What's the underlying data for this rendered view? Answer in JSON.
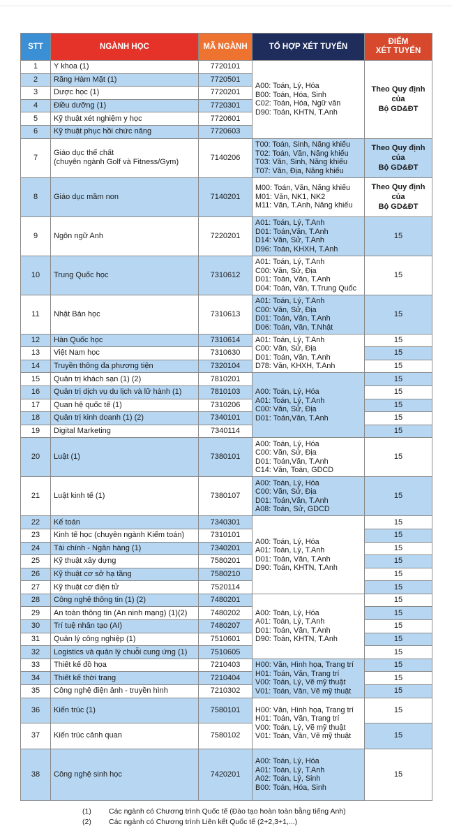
{
  "header": {
    "stt": "STT",
    "name": "NGÀNH HỌC",
    "code": "MÃ NGÀNH",
    "combo": "TỔ HỢP XÉT TUYỂN",
    "score": [
      "ĐIỂM",
      "XÉT TUYỂN"
    ],
    "colors": {
      "stt": "#3b8fd5",
      "name": "#e5332a",
      "code": "#ee7331",
      "combo": "#1e2d5c",
      "score": "#d6492c"
    }
  },
  "rows": [
    {
      "stt": "1",
      "name": [
        "Y khoa (1)"
      ],
      "code": "7720101"
    },
    {
      "stt": "2",
      "name": [
        "Răng Hàm Mặt (1)"
      ],
      "code": "7720501"
    },
    {
      "stt": "3",
      "name": [
        "Dược học (1)"
      ],
      "code": "7720201"
    },
    {
      "stt": "4",
      "name": [
        "Điều dưỡng (1)"
      ],
      "code": "7720301"
    },
    {
      "stt": "5",
      "name": [
        "Kỹ thuật xét nghiệm y học"
      ],
      "code": "7720601"
    },
    {
      "stt": "6",
      "name": [
        "Kỹ thuật phục hồi chức năng"
      ],
      "code": "7720603"
    },
    {
      "stt": "7",
      "name": [
        "Giáo dục thể chất",
        "(chuyên ngành Golf và Fitness/Gym)"
      ],
      "code": "7140206"
    },
    {
      "stt": "8",
      "name": [
        "Giáo dục mầm non"
      ],
      "code": "7140201"
    },
    {
      "stt": "9",
      "name": [
        "Ngôn ngữ Anh"
      ],
      "code": "7220201",
      "score": "15"
    },
    {
      "stt": "10",
      "name": [
        "Trung Quốc học"
      ],
      "code": "7310612",
      "score": "15"
    },
    {
      "stt": "11",
      "name": [
        "Nhật Bản học"
      ],
      "code": "7310613",
      "score": "15"
    },
    {
      "stt": "12",
      "name": [
        "Hàn Quốc học"
      ],
      "code": "7310614",
      "score": "15"
    },
    {
      "stt": "13",
      "name": [
        "Việt Nam học"
      ],
      "code": "7310630",
      "score": "15"
    },
    {
      "stt": "14",
      "name": [
        "Truyền thông đa phương tiện"
      ],
      "code": "7320104",
      "score": "15"
    },
    {
      "stt": "15",
      "name": [
        "Quản trị khách sạn (1) (2)"
      ],
      "code": "7810201",
      "score": "15"
    },
    {
      "stt": "16",
      "name": [
        "Quản trị dịch vụ du lịch và lữ hành (1)"
      ],
      "code": "7810103",
      "score": "15"
    },
    {
      "stt": "17",
      "name": [
        "Quan hệ quốc tế (1)"
      ],
      "code": "7310206",
      "score": "15"
    },
    {
      "stt": "18",
      "name": [
        "Quản trị kinh doanh (1) (2)"
      ],
      "code": "7340101",
      "score": "15"
    },
    {
      "stt": "19",
      "name": [
        "Digital Marketing"
      ],
      "code": "7340114",
      "score": "15"
    },
    {
      "stt": "20",
      "name": [
        "Luật (1)"
      ],
      "code": "7380101",
      "score": "15"
    },
    {
      "stt": "21",
      "name": [
        "Luật kinh tế (1)"
      ],
      "code": "7380107",
      "score": "15"
    },
    {
      "stt": "22",
      "name": [
        "Kế toán"
      ],
      "code": "7340301",
      "score": "15"
    },
    {
      "stt": "23",
      "name": [
        "Kinh tế học (chuyên ngành Kiểm toán)"
      ],
      "code": "7310101",
      "score": "15"
    },
    {
      "stt": "24",
      "name": [
        "Tài chính - Ngân hàng (1)"
      ],
      "code": "7340201",
      "score": "15"
    },
    {
      "stt": "25",
      "name": [
        "Kỹ thuật xây dựng"
      ],
      "code": "7580201",
      "score": "15"
    },
    {
      "stt": "26",
      "name": [
        "Kỹ thuật cơ sở hạ tầng"
      ],
      "code": "7580210",
      "score": "15"
    },
    {
      "stt": "27",
      "name": [
        "Kỹ thuật cơ điện tử"
      ],
      "code": "7520114",
      "score": "15"
    },
    {
      "stt": "28",
      "name": [
        "Công nghệ thông tin (1) (2)"
      ],
      "code": "7480201",
      "score": "15"
    },
    {
      "stt": "29",
      "name": [
        "An toàn thông tin (An ninh mạng) (1)(2)"
      ],
      "code": "7480202",
      "score": "15"
    },
    {
      "stt": "30",
      "name": [
        "Trí tuệ nhân tạo (AI)"
      ],
      "code": "7480207",
      "score": "15"
    },
    {
      "stt": "31",
      "name": [
        "Quản lý công nghiệp (1)"
      ],
      "code": "7510601",
      "score": "15"
    },
    {
      "stt": "32",
      "name": [
        "Logistics và quản lý chuỗi cung ứng (1)"
      ],
      "code": "7510605",
      "score": "15"
    },
    {
      "stt": "33",
      "name": [
        "Thiết kế đồ họa"
      ],
      "code": "7210403",
      "score": "15"
    },
    {
      "stt": "34",
      "name": [
        "Thiết kế thời trang"
      ],
      "code": "7210404",
      "score": "15"
    },
    {
      "stt": "35",
      "name": [
        "Công nghệ điện ảnh - truyền hình"
      ],
      "code": "7210302",
      "score": "15"
    },
    {
      "stt": "36",
      "name": [
        "Kiến trúc (1)"
      ],
      "code": "7580101",
      "score": "15"
    },
    {
      "stt": "37",
      "name": [
        "Kiến trúc cảnh quan"
      ],
      "code": "7580102",
      "score": "15"
    },
    {
      "stt": "38",
      "name": [
        "Công nghệ sinh học"
      ],
      "code": "7420201",
      "score": "15"
    }
  ],
  "score_groups": [
    {
      "from": 1,
      "to": 6,
      "lines": [
        "Theo Quy định",
        "của",
        "Bộ GD&ĐT"
      ]
    },
    {
      "from": 7,
      "to": 7,
      "lines": [
        "Theo Quy định",
        "của",
        "Bộ GD&ĐT"
      ]
    },
    {
      "from": 8,
      "to": 8,
      "lines": [
        "Theo Quy định",
        "của",
        "Bộ GD&ĐT"
      ]
    }
  ],
  "combo_groups": [
    {
      "from": 1,
      "to": 6,
      "lines": [
        "A00: Toán, Lý, Hóa",
        "B00: Toán, Hóa, Sinh",
        "C02: Toán, Hóa, Ngữ văn",
        "D90: Toán, KHTN, T.Anh"
      ]
    },
    {
      "from": 7,
      "to": 7,
      "lines": [
        "T00: Toán, Sinh, Năng khiếu",
        "T02: Toán, Văn, Năng khiếu",
        "T03: Văn, Sinh, Năng khiếu",
        "T07: Văn, Địa, Năng khiếu"
      ]
    },
    {
      "from": 8,
      "to": 8,
      "lines": [
        "M00: Toán, Văn, Năng khiếu",
        "M01: Văn, NK1, NK2",
        "M11: Văn, T.Anh, Năng khiếu"
      ]
    },
    {
      "from": 9,
      "to": 9,
      "lines": [
        "A01: Toán, Lý, T.Anh",
        "D01: Toán,Văn, T.Anh",
        "D14: Văn, Sử,  T.Anh",
        "D96: Toán, KHXH, T.Anh"
      ]
    },
    {
      "from": 10,
      "to": 10,
      "lines": [
        "A01: Toán, Lý, T.Anh",
        "C00: Văn, Sử, Địa",
        "D01: Toán, Văn, T.Anh",
        "D04: Toán, Văn, T.Trung Quốc"
      ]
    },
    {
      "from": 11,
      "to": 11,
      "lines": [
        "A01: Toán, Lý, T.Anh",
        "C00: Văn, Sử, Địa",
        "D01: Toán, Văn, T.Anh",
        "D06: Toán, Văn, T.Nhật"
      ]
    },
    {
      "from": 12,
      "to": 14,
      "lines": [
        "A01: Toán, Lý, T.Anh",
        "C00: Văn, Sử, Địa",
        "D01: Toán, Văn, T.Anh",
        "D78: Văn, KHXH, T.Anh"
      ]
    },
    {
      "from": 15,
      "to": 19,
      "lines": [
        "A00: Toán, Lý, Hóa",
        "A01: Toán, Lý, T.Anh",
        "C00: Văn, Sử, Địa",
        "D01: Toán,Văn, T.Anh"
      ]
    },
    {
      "from": 20,
      "to": 20,
      "lines": [
        "A00: Toán, Lý, Hóa",
        "C00: Văn, Sử, Địa",
        "D01: Toán,Văn, T.Anh",
        "C14: Văn, Toán, GDCD"
      ]
    },
    {
      "from": 21,
      "to": 21,
      "lines": [
        "A00: Toán, Lý, Hóa",
        "C00: Văn, Sử, Địa",
        "D01: Toán,Văn, T.Anh",
        "A08: Toán, Sử, GDCD"
      ]
    },
    {
      "from": 22,
      "to": 27,
      "lines": [
        "A00: Toán, Lý, Hóa",
        "A01: Toán, Lý, T.Anh",
        "D01: Toán, Văn, T.Anh",
        "D90: Toán, KHTN, T.Anh"
      ]
    },
    {
      "from": 28,
      "to": 32,
      "lines": [
        "A00: Toán, Lý, Hóa",
        "A01: Toán, Lý, T.Anh",
        "D01: Toán, Văn, T.Anh",
        "D90: Toán, KHTN, T.Anh"
      ]
    },
    {
      "from": 33,
      "to": 35,
      "lines": [
        "H00: Văn, Hình họa, Trang trí",
        "H01: Toán, Văn, Trang trí",
        "V00: Toán, Lý, Vẽ mỹ thuật",
        "V01: Toán, Văn, Vẽ mỹ thuật"
      ]
    },
    {
      "from": 36,
      "to": 37,
      "lines": [
        "H00: Văn, Hình họa, Trang trí",
        "H01: Toán, Văn, Trang trí",
        "V00: Toán, Lý, Vẽ mỹ thuật",
        "V01: Toán, Văn, Vẽ mỹ thuật"
      ]
    },
    {
      "from": 38,
      "to": 38,
      "lines": [
        "A00: Toán, Lý, Hóa",
        "A01: Toán, Lý, T.Anh",
        "A02: Toán, Lý, Sinh",
        "B00: Toán, Hóa, Sinh"
      ]
    }
  ],
  "notes": [
    {
      "mark": "(1)",
      "text": "Các ngành có Chương trình Quốc tế (Đào tạo hoàn toàn bằng tiếng Anh)"
    },
    {
      "mark": "(2)",
      "text": "Các ngành có Chương trình Liên kết Quốc tế (2+2,3+1,...)"
    }
  ]
}
